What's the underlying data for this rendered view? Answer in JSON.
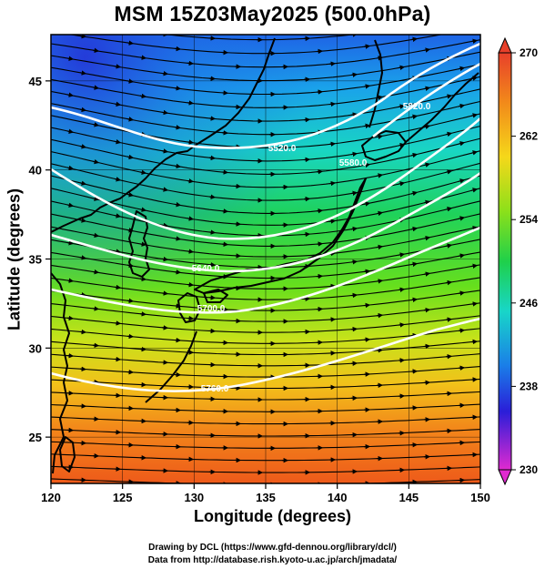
{
  "title": "MSM 15Z03May2025 (500.0hPa)",
  "axes": {
    "x_label": "Longitude (degrees)",
    "y_label": "Latitude  (degrees)",
    "x_ticks": [
      "120",
      "125",
      "130",
      "135",
      "140",
      "145",
      "150"
    ],
    "y_ticks": [
      "25",
      "30",
      "35",
      "40",
      "45"
    ],
    "x_range": [
      120,
      150
    ],
    "y_range": [
      22.4,
      47.6
    ]
  },
  "colorbar": {
    "ticks": [
      "270",
      "262",
      "254",
      "246",
      "238",
      "230"
    ],
    "range": [
      230,
      270
    ]
  },
  "contours": [
    {
      "label": "5520.0"
    },
    {
      "label": "5580.0"
    },
    {
      "label": "5640.0"
    },
    {
      "label": "5700.0"
    },
    {
      "label": "5760.0"
    },
    {
      "label": "5820.0"
    }
  ],
  "credits": [
    "Drawing by DCL (https://www.gfd-dennou.org/library/dcl/)",
    "Data from http://database.rish.kyoto-u.ac.jp/arch/jmadata/"
  ]
}
